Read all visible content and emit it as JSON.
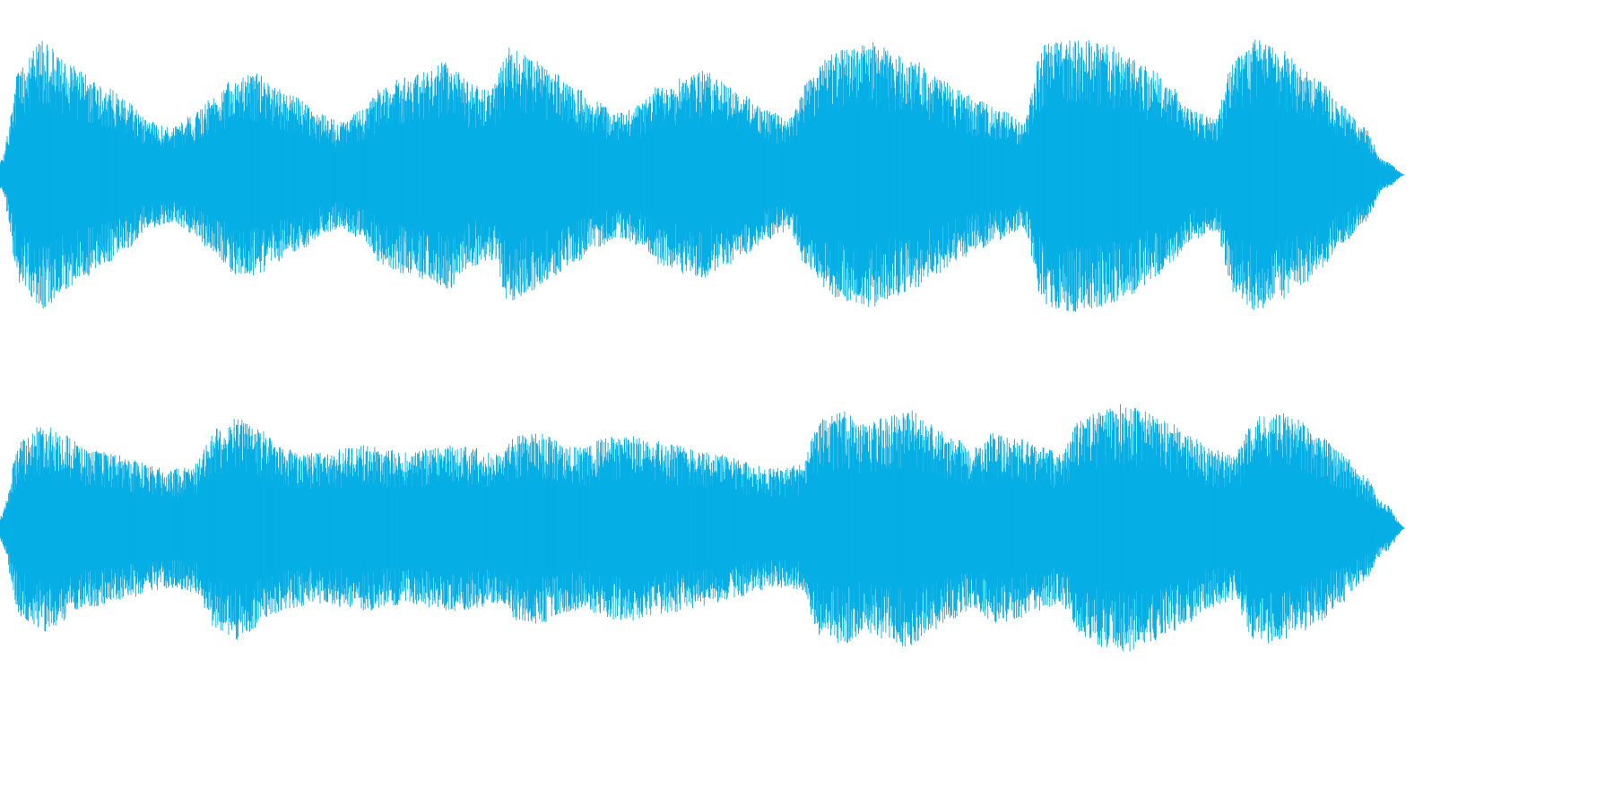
{
  "waveform": {
    "color": "#05AEE4",
    "channels": [
      {
        "name": "",
        "envelope": [
          0.1,
          0.78,
          0.96,
          0.82,
          0.72,
          0.62,
          0.52,
          0.38,
          0.34,
          0.42,
          0.55,
          0.7,
          0.72,
          0.62,
          0.55,
          0.44,
          0.38,
          0.46,
          0.64,
          0.7,
          0.74,
          0.82,
          0.66,
          0.6,
          0.92,
          0.82,
          0.72,
          0.62,
          0.52,
          0.44,
          0.5,
          0.64,
          0.7,
          0.74,
          0.66,
          0.56,
          0.46,
          0.4,
          0.68,
          0.86,
          0.9,
          0.94,
          0.86,
          0.8,
          0.7,
          0.6,
          0.52,
          0.46,
          0.38,
          0.92,
          0.98,
          0.96,
          0.92,
          0.86,
          0.76,
          0.62,
          0.46,
          0.4,
          0.86,
          0.96,
          0.9,
          0.8,
          0.66,
          0.5,
          0.34,
          0.1,
          0.0
        ]
      },
      {
        "name": "",
        "envelope": [
          0.1,
          0.7,
          0.8,
          0.72,
          0.62,
          0.58,
          0.54,
          0.48,
          0.46,
          0.5,
          0.78,
          0.86,
          0.76,
          0.64,
          0.6,
          0.58,
          0.62,
          0.64,
          0.6,
          0.58,
          0.62,
          0.64,
          0.62,
          0.58,
          0.72,
          0.74,
          0.66,
          0.62,
          0.7,
          0.72,
          0.68,
          0.66,
          0.62,
          0.58,
          0.54,
          0.48,
          0.46,
          0.5,
          0.84,
          0.9,
          0.8,
          0.86,
          0.92,
          0.8,
          0.7,
          0.62,
          0.74,
          0.7,
          0.64,
          0.58,
          0.84,
          0.92,
          0.96,
          0.9,
          0.82,
          0.72,
          0.62,
          0.56,
          0.86,
          0.9,
          0.84,
          0.72,
          0.58,
          0.42,
          0.2,
          0.0
        ]
      }
    ]
  }
}
